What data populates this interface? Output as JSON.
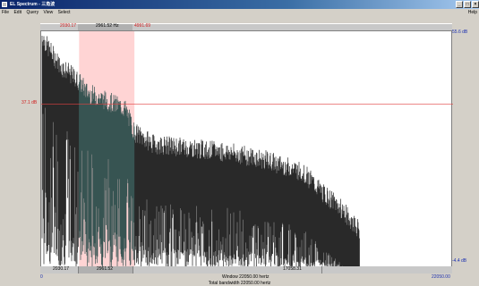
{
  "window": {
    "title": "EL Spectrum - 三角波",
    "controls": {
      "minimize": "_",
      "maximize": "□",
      "close": "×"
    }
  },
  "menu": {
    "items": [
      "File",
      "Edit",
      "Query",
      "View",
      "Select"
    ],
    "help": "Help"
  },
  "selection": {
    "start_top": "2030.17",
    "width_top": "2961.52 Hz",
    "end_top": "4991.69",
    "start_bottom": "2030.17",
    "width_bottom": "2961.52",
    "end_bottom": "17058.31"
  },
  "axis": {
    "top_right_db": "55.6 dB",
    "cursor_db": "37.1 dB",
    "bottom_right_db": "-4.4 dB",
    "freq_min": "0",
    "freq_max": "22050.00"
  },
  "status": {
    "window_label": "Window 22050.00 hertz",
    "bottom_partial": "Total bandwidth 22050.00 hertz"
  },
  "colors": {
    "selection_fill": "#ffd4d4",
    "selected_spectrum": "#123c3a",
    "spectrum": "#000000",
    "cursor_line": "#e04040"
  },
  "chart_data": {
    "type": "line",
    "x_range_hz": [
      0,
      22050
    ],
    "y_range_db": [
      -4.4,
      55.6
    ],
    "selection_hz": [
      2030.17,
      4991.69
    ],
    "cursor_db": 37.1,
    "envelope_hz": [
      0,
      300,
      1000,
      2000,
      2500,
      3500,
      4500,
      5000,
      6000,
      8000,
      10000,
      12000,
      14000,
      15000,
      16000,
      17058
    ],
    "envelope_db": [
      55,
      52,
      47,
      43,
      40,
      38,
      36,
      30,
      27,
      26,
      25,
      23,
      20,
      15,
      11,
      5
    ]
  }
}
